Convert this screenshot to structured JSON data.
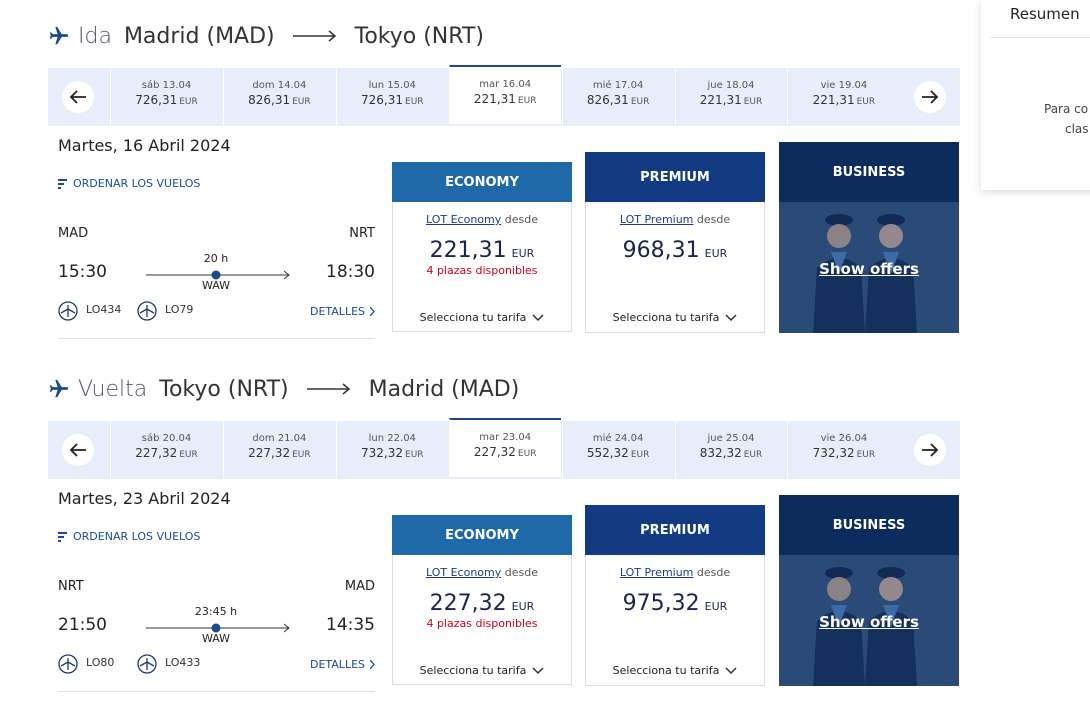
{
  "sections": [
    {
      "label": "Ida",
      "origin": "Madrid (MAD)",
      "destination": "Tokyo (NRT)",
      "dates": [
        {
          "day": "sáb 13.04",
          "price": "726,31",
          "currency": "EUR"
        },
        {
          "day": "dom 14.04",
          "price": "826,31",
          "currency": "EUR"
        },
        {
          "day": "lun 15.04",
          "price": "726,31",
          "currency": "EUR"
        },
        {
          "day": "mar 16.04",
          "price": "221,31",
          "currency": "EUR"
        },
        {
          "day": "mié 17.04",
          "price": "826,31",
          "currency": "EUR"
        },
        {
          "day": "jue 18.04",
          "price": "221,31",
          "currency": "EUR"
        },
        {
          "day": "vie 19.04",
          "price": "221,31",
          "currency": "EUR"
        }
      ],
      "selected_date": 3,
      "date_heading": "Martes, 16 Abril 2024",
      "sort": "ORDENAR LOS VUELOS",
      "flight": {
        "from": "MAD",
        "to": "NRT",
        "departure": "15:30",
        "arrival": "18:30",
        "duration": "20 h",
        "via": "WAW",
        "flight_numbers": [
          "LO434",
          "LO79"
        ],
        "details": "DETALLES"
      },
      "fares": [
        {
          "name": "ECONOMY",
          "link": "LOT Economy",
          "from_text": "desde",
          "price": "221,31",
          "currency": "EUR",
          "availability": "4 plazas disponibles",
          "select": "Selecciona tu tarifa"
        },
        {
          "name": "PREMIUM",
          "link": "LOT Premium",
          "from_text": "desde",
          "price": "968,31",
          "currency": "EUR",
          "select": "Selecciona tu tarifa"
        },
        {
          "name": "BUSINESS",
          "cta": "Show offers"
        }
      ]
    },
    {
      "label": "Vuelta",
      "origin": "Tokyo (NRT)",
      "destination": "Madrid (MAD)",
      "dates": [
        {
          "day": "sáb 20.04",
          "price": "227,32",
          "currency": "EUR"
        },
        {
          "day": "dom 21.04",
          "price": "227,32",
          "currency": "EUR"
        },
        {
          "day": "lun 22.04",
          "price": "732,32",
          "currency": "EUR"
        },
        {
          "day": "mar 23.04",
          "price": "227,32",
          "currency": "EUR"
        },
        {
          "day": "mié 24.04",
          "price": "552,32",
          "currency": "EUR"
        },
        {
          "day": "jue 25.04",
          "price": "832,32",
          "currency": "EUR"
        },
        {
          "day": "vie 26.04",
          "price": "732,32",
          "currency": "EUR"
        }
      ],
      "selected_date": 3,
      "date_heading": "Martes, 23 Abril 2024",
      "sort": "ORDENAR LOS VUELOS",
      "flight": {
        "from": "NRT",
        "to": "MAD",
        "departure": "21:50",
        "arrival": "14:35",
        "duration": "23:45 h",
        "via": "WAW",
        "flight_numbers": [
          "LO80",
          "LO433"
        ],
        "details": "DETALLES"
      },
      "fares": [
        {
          "name": "ECONOMY",
          "link": "LOT Economy",
          "from_text": "desde",
          "price": "227,32",
          "currency": "EUR",
          "availability": "4 plazas disponibles",
          "select": "Selecciona tu tarifa"
        },
        {
          "name": "PREMIUM",
          "link": "LOT Premium",
          "from_text": "desde",
          "price": "975,32",
          "currency": "EUR",
          "select": "Selecciona tu tarifa"
        },
        {
          "name": "BUSINESS",
          "cta": "Show offers"
        }
      ]
    }
  ],
  "sidebar": {
    "title": "Resumen",
    "lines": [
      "Para co",
      "clas"
    ]
  }
}
